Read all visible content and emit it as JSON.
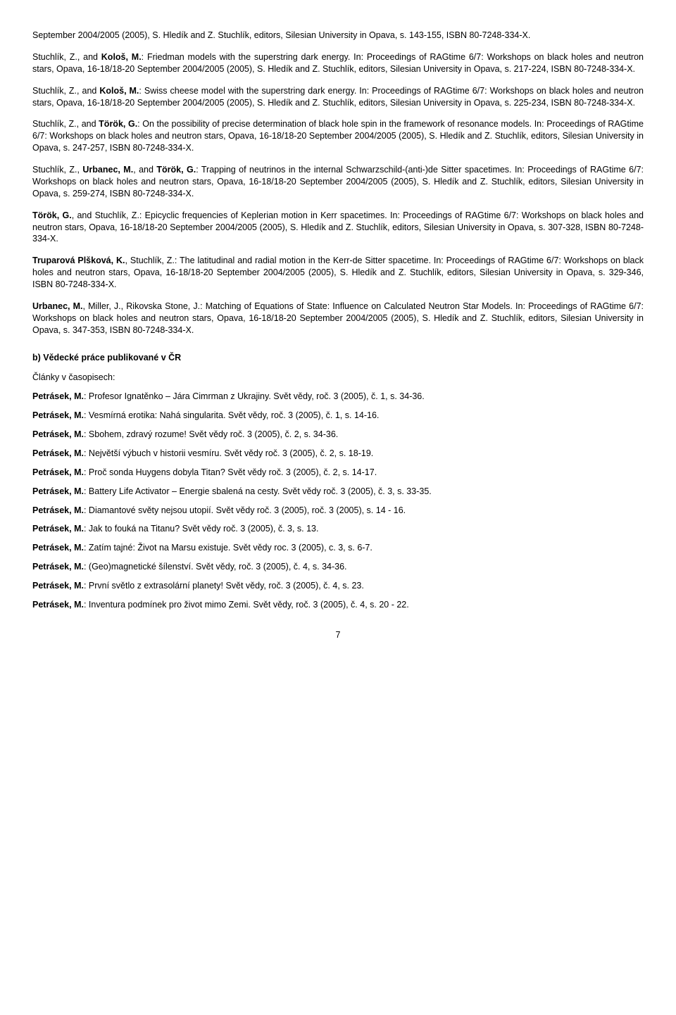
{
  "entries": [
    {
      "html": "September 2004/2005 (2005), S. Hledík and Z. Stuchlík, editors, Silesian University in Opava, s. 143-155, ISBN 80-7248-334-X."
    },
    {
      "html": "Stuchlík, Z., and <b>Kološ, M.</b>: Friedman models with the superstring dark energy. In: Proceedings of RAGtime 6/7: Workshops on black holes and neutron stars, Opava, 16-18/18-20 September 2004/2005 (2005), S. Hledík and Z. Stuchlík, editors, Silesian University in Opava, s. 217-224, ISBN 80-7248-334-X."
    },
    {
      "html": "Stuchlík, Z., and <b>Kološ, M.</b>: Swiss cheese model with the superstring dark energy. In: Proceedings of RAGtime 6/7: Workshops on black holes and neutron stars, Opava, 16-18/18-20 September 2004/2005 (2005), S. Hledík and Z. Stuchlík, editors, Silesian University in Opava, s. 225-234, ISBN 80-7248-334-X."
    },
    {
      "html": "Stuchlík, Z., and <b>Török, G.</b>: On the possibility of precise determination of black hole spin in the framework of resonance models. In: Proceedings of RAGtime 6/7: Workshops on black holes and neutron stars, Opava, 16-18/18-20 September 2004/2005 (2005), S. Hledík and Z. Stuchlík, editors, Silesian University in Opava, s. 247-257, ISBN 80-7248-334-X."
    },
    {
      "html": "Stuchlík, Z., <b>Urbanec, M.</b>, and <b>Török, G.</b>: Trapping of neutrinos in the internal Schwarzschild-(anti-)de Sitter spacetimes. In: Proceedings of RAGtime 6/7: Workshops on black holes and neutron stars, Opava, 16-18/18-20 September 2004/2005 (2005), S. Hledík and Z. Stuchlík, editors, Silesian University in Opava, s. 259-274, ISBN 80-7248-334-X."
    },
    {
      "html": "<b>Török, G.</b>, and Stuchlík, Z.: Epicyclic frequencies of Keplerian motion in Kerr spacetimes. In: Proceedings of RAGtime 6/7: Workshops on black holes and neutron stars, Opava, 16-18/18-20 September 2004/2005 (2005), S. Hledík and Z. Stuchlík, editors, Silesian University in Opava, s. 307-328, ISBN 80-7248-334-X."
    },
    {
      "html": "<b>Truparová Plšková, K.</b>, Stuchlík, Z.: The latitudinal and radial motion in the Kerr-de Sitter spacetime. In: Proceedings of RAGtime 6/7: Workshops on black holes and neutron stars, Opava, 16-18/18-20 September 2004/2005 (2005), S. Hledík and Z. Stuchlík, editors, Silesian University in Opava, s. 329-346, ISBN 80-7248-334-X."
    },
    {
      "html": "<b>Urbanec, M.</b>, Miller, J., Rikovska Stone, J.: Matching of Equations of State: Influence on Calculated Neutron Star Models. In: Proceedings of RAGtime 6/7: Workshops on black holes and neutron stars, Opava, 16-18/18-20 September 2004/2005 (2005), S. Hledík and Z. Stuchlík, editors, Silesian University in Opava, s. 347-353, ISBN 80-7248-334-X."
    }
  ],
  "sectionB": "b)  Vědecké práce publikované v ČR",
  "subhead": "Články v časopisech:",
  "shorts": [
    {
      "html": "<b>Petrásek, M.</b>: Profesor Ignatěnko – Jára Cimrman z Ukrajiny. Svět vědy, roč. 3 (2005), č. 1, s. 34-36."
    },
    {
      "html": "<b>Petrásek, M.</b>: Vesmírná erotika: Nahá singularita. Svět vědy, roč. 3 (2005), č. 1, s. 14-16."
    },
    {
      "html": "<b>Petrásek, M.</b>: Sbohem, zdravý rozume! Svět vědy roč. 3 (2005), č. 2, s. 34-36."
    },
    {
      "html": "<b>Petrásek, M.</b>: Největší výbuch v historii vesmíru. Svět vědy roč. 3 (2005), č. 2, s. 18-19."
    },
    {
      "html": "<b>Petrásek, M.</b>: Proč sonda Huygens dobyla Titan? Svět vědy roč. 3 (2005), č. 2, s. 14-17."
    },
    {
      "html": "<b>Petrásek, M.</b>: Battery Life Activator – Energie sbalená na cesty. Svět vědy roč. 3 (2005), č. 3, s. 33-35."
    },
    {
      "html": "<b>Petrásek, M.</b>: Diamantové světy nejsou utopií. Svět vědy roč. 3 (2005), roč. 3 (2005), s. 14 - 16."
    },
    {
      "html": "<b>Petrásek, M.</b>: Jak to fouká na Titanu? Svět vědy roč. 3 (2005), č. 3, s. 13."
    },
    {
      "html": "<b>Petrásek, M.</b>: Zatím tajné: Život na Marsu existuje. Svět vědy roc. 3 (2005), c. 3, s. 6-7."
    },
    {
      "html": "<b>Petrásek, M.</b>: (Geo)magnetické šílenství. Svět vědy, roč. 3 (2005), č. 4, s. 34-36."
    },
    {
      "html": "<b>Petrásek, M.</b>: První světlo z extrasolární planety! Svět vědy, roč. 3 (2005), č. 4, s. 23."
    },
    {
      "html": "<b>Petrásek, M.</b>: Inventura podmínek pro život mimo Zemi. Svět vědy, roč. 3 (2005), č. 4, s. 20 - 22."
    }
  ],
  "pageNumber": "7"
}
